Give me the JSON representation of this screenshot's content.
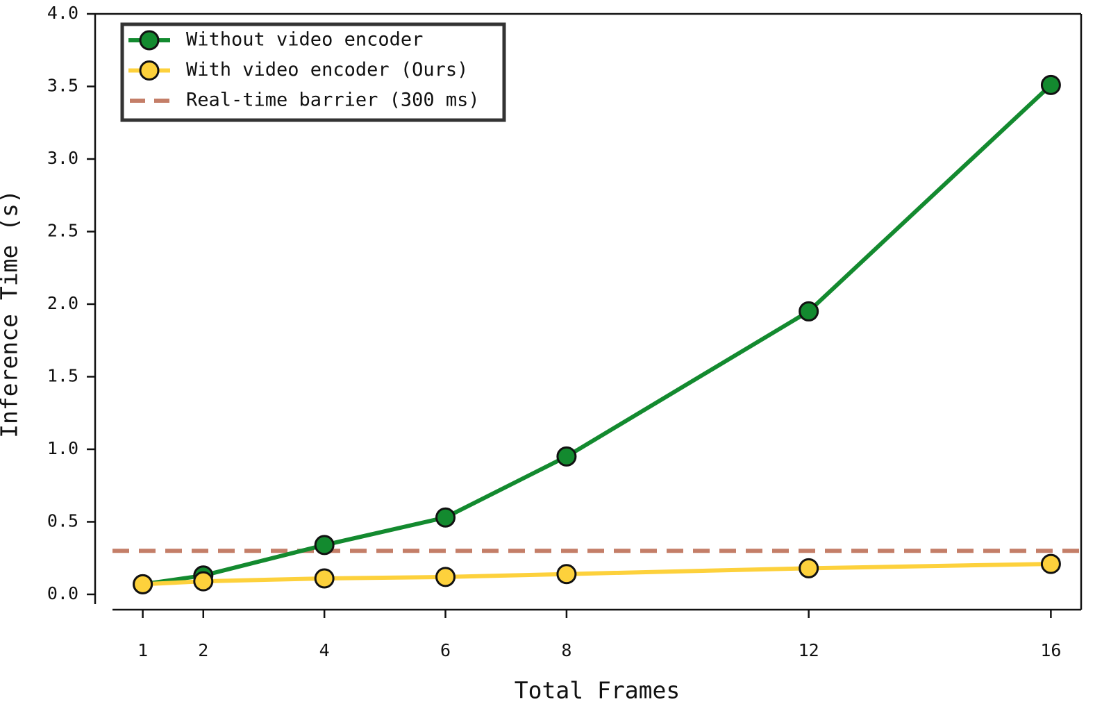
{
  "chart_data": {
    "type": "line",
    "xlabel": "Total Frames",
    "ylabel": "Inference Time (s)",
    "x": [
      1,
      2,
      4,
      6,
      8,
      12,
      16
    ],
    "series": [
      {
        "name": "Without video encoder",
        "color": "#138a2f",
        "values": [
          0.07,
          0.13,
          0.34,
          0.53,
          0.95,
          1.95,
          3.51
        ]
      },
      {
        "name": "With video encoder (Ours)",
        "color": "#fdd13c",
        "values": [
          0.07,
          0.09,
          0.11,
          0.12,
          0.14,
          0.18,
          0.21
        ]
      }
    ],
    "hlines": [
      {
        "name": "Real-time barrier (300 ms)",
        "value": 0.3,
        "color": "#c47e68"
      }
    ],
    "xlim": [
      0.5,
      16.5
    ],
    "xticks": [
      1,
      2,
      4,
      6,
      8,
      12,
      16
    ],
    "ylim": [
      -0.07,
      4.0
    ],
    "yticks": [
      {
        "value": 0,
        "label": "0.0"
      },
      0.5,
      {
        "value": 1,
        "label": "1.0"
      },
      1.5,
      {
        "value": 2,
        "label": "2.0"
      },
      2.5,
      {
        "value": 3,
        "label": "3.0"
      },
      3.5,
      {
        "value": 4,
        "label": "4.0"
      }
    ],
    "legend": "upper left"
  }
}
